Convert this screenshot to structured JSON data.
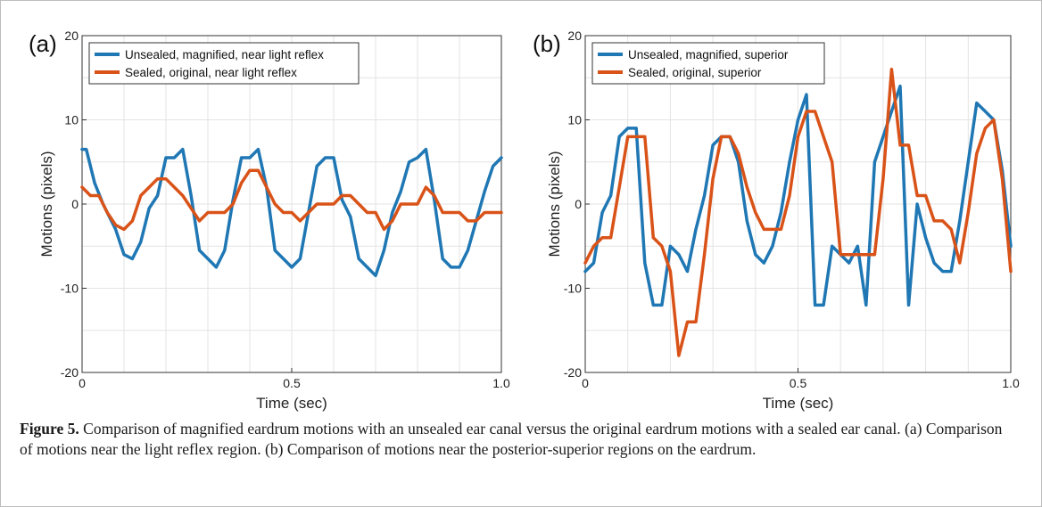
{
  "chart_data": [
    {
      "panel_label": "(a)",
      "type": "line",
      "xlabel": "Time (sec)",
      "ylabel": "Motions (pixels)",
      "xlim": [
        0,
        1.0
      ],
      "ylim": [
        -20,
        20
      ],
      "xticks": [
        0,
        0.5,
        1.0
      ],
      "xtick_labels": [
        "0",
        "0.5",
        "1.0"
      ],
      "yticks": [
        -20,
        -10,
        0,
        10,
        20
      ],
      "ytick_labels": [
        "-20",
        "-10",
        "0",
        "10",
        "20"
      ],
      "grid": true,
      "legend_position": "top-left",
      "series": [
        {
          "name": "Unsealed, magnified, near light reflex",
          "color": "#1f77b4",
          "x": [
            0.0,
            0.01,
            0.03,
            0.05,
            0.08,
            0.1,
            0.12,
            0.14,
            0.16,
            0.18,
            0.2,
            0.22,
            0.24,
            0.26,
            0.28,
            0.3,
            0.32,
            0.34,
            0.36,
            0.38,
            0.4,
            0.42,
            0.44,
            0.46,
            0.48,
            0.5,
            0.52,
            0.54,
            0.56,
            0.58,
            0.6,
            0.62,
            0.64,
            0.66,
            0.68,
            0.7,
            0.72,
            0.74,
            0.76,
            0.78,
            0.8,
            0.82,
            0.84,
            0.86,
            0.88,
            0.9,
            0.92,
            0.94,
            0.96,
            0.98,
            1.0
          ],
          "values": [
            6.5,
            6.5,
            2.5,
            0.0,
            -3.0,
            -6.0,
            -6.5,
            -4.5,
            -0.5,
            1.0,
            5.5,
            5.5,
            6.5,
            1.0,
            -5.5,
            -6.5,
            -7.5,
            -5.5,
            0.5,
            5.5,
            5.5,
            6.5,
            2.0,
            -5.5,
            -6.5,
            -7.5,
            -6.5,
            -1.0,
            4.5,
            5.5,
            5.5,
            0.5,
            -1.5,
            -6.5,
            -7.5,
            -8.5,
            -5.5,
            -1.0,
            1.5,
            5.0,
            5.5,
            6.5,
            0.5,
            -6.5,
            -7.5,
            -7.5,
            -5.5,
            -2.0,
            1.5,
            4.5,
            5.5
          ]
        },
        {
          "name": "Sealed, original, near light reflex",
          "color": "#d95319",
          "x": [
            0.0,
            0.02,
            0.04,
            0.06,
            0.08,
            0.1,
            0.12,
            0.14,
            0.16,
            0.18,
            0.2,
            0.22,
            0.24,
            0.26,
            0.28,
            0.3,
            0.32,
            0.34,
            0.36,
            0.38,
            0.4,
            0.42,
            0.44,
            0.46,
            0.48,
            0.5,
            0.52,
            0.54,
            0.56,
            0.58,
            0.6,
            0.62,
            0.64,
            0.66,
            0.68,
            0.7,
            0.72,
            0.74,
            0.76,
            0.78,
            0.8,
            0.82,
            0.84,
            0.86,
            0.88,
            0.9,
            0.92,
            0.94,
            0.96,
            0.98,
            1.0
          ],
          "values": [
            2.0,
            1.0,
            1.0,
            -1.0,
            -2.5,
            -3.0,
            -2.0,
            1.0,
            2.0,
            3.0,
            3.0,
            2.0,
            1.0,
            -0.5,
            -2.0,
            -1.0,
            -1.0,
            -1.0,
            0.0,
            2.5,
            4.0,
            4.0,
            2.0,
            0.0,
            -1.0,
            -1.0,
            -2.0,
            -1.0,
            0.0,
            0.0,
            0.0,
            1.0,
            1.0,
            0.0,
            -1.0,
            -1.0,
            -3.0,
            -2.0,
            0.0,
            0.0,
            0.0,
            2.0,
            1.0,
            -1.0,
            -1.0,
            -1.0,
            -2.0,
            -2.0,
            -1.0,
            -1.0,
            -1.0
          ]
        }
      ]
    },
    {
      "panel_label": "(b)",
      "type": "line",
      "xlabel": "Time (sec)",
      "ylabel": "Motions (pixels)",
      "xlim": [
        0,
        1.0
      ],
      "ylim": [
        -20,
        20
      ],
      "xticks": [
        0,
        0.5,
        1.0
      ],
      "xtick_labels": [
        "0",
        "0.5",
        "1.0"
      ],
      "yticks": [
        -20,
        -10,
        0,
        10,
        20
      ],
      "ytick_labels": [
        "-20",
        "-10",
        "0",
        "10",
        "20"
      ],
      "grid": true,
      "legend_position": "top-left",
      "series": [
        {
          "name": "Unsealed, magnified, superior",
          "color": "#1f77b4",
          "x": [
            0.0,
            0.02,
            0.04,
            0.06,
            0.08,
            0.1,
            0.12,
            0.14,
            0.16,
            0.18,
            0.2,
            0.22,
            0.24,
            0.26,
            0.28,
            0.3,
            0.32,
            0.34,
            0.36,
            0.38,
            0.4,
            0.42,
            0.44,
            0.46,
            0.48,
            0.5,
            0.52,
            0.54,
            0.56,
            0.58,
            0.6,
            0.62,
            0.64,
            0.66,
            0.68,
            0.7,
            0.72,
            0.74,
            0.76,
            0.78,
            0.8,
            0.82,
            0.84,
            0.86,
            0.88,
            0.9,
            0.92,
            0.94,
            0.96,
            0.98,
            1.0
          ],
          "values": [
            -8.0,
            -7.0,
            -1.0,
            1.0,
            8.0,
            9.0,
            9.0,
            -7.0,
            -12.0,
            -12.0,
            -5.0,
            -6.0,
            -8.0,
            -3.0,
            1.0,
            7.0,
            8.0,
            8.0,
            5.0,
            -2.0,
            -6.0,
            -7.0,
            -5.0,
            -1.0,
            5.0,
            10.0,
            13.0,
            -12.0,
            -12.0,
            -5.0,
            -6.0,
            -7.0,
            -5.0,
            -12.0,
            5.0,
            8.0,
            11.0,
            14.0,
            -12.0,
            0.0,
            -4.0,
            -7.0,
            -8.0,
            -8.0,
            -2.0,
            5.0,
            12.0,
            11.0,
            10.0,
            4.0,
            -5.0
          ]
        },
        {
          "name": "Sealed, original, superior",
          "color": "#d95319",
          "x": [
            0.0,
            0.02,
            0.04,
            0.06,
            0.08,
            0.1,
            0.12,
            0.14,
            0.16,
            0.18,
            0.2,
            0.22,
            0.24,
            0.26,
            0.28,
            0.3,
            0.32,
            0.34,
            0.36,
            0.38,
            0.4,
            0.42,
            0.44,
            0.46,
            0.48,
            0.5,
            0.52,
            0.54,
            0.56,
            0.58,
            0.6,
            0.62,
            0.64,
            0.66,
            0.68,
            0.7,
            0.72,
            0.74,
            0.76,
            0.78,
            0.8,
            0.82,
            0.84,
            0.86,
            0.88,
            0.9,
            0.92,
            0.94,
            0.96,
            0.98,
            1.0
          ],
          "values": [
            -7.0,
            -5.0,
            -4.0,
            -4.0,
            2.0,
            8.0,
            8.0,
            8.0,
            -4.0,
            -5.0,
            -8.0,
            -18.0,
            -14.0,
            -14.0,
            -6.0,
            3.0,
            8.0,
            8.0,
            6.0,
            2.0,
            -1.0,
            -3.0,
            -3.0,
            -3.0,
            1.0,
            8.0,
            11.0,
            11.0,
            8.0,
            5.0,
            -6.0,
            -6.0,
            -6.0,
            -6.0,
            -6.0,
            3.0,
            16.0,
            7.0,
            7.0,
            1.0,
            1.0,
            -2.0,
            -2.0,
            -3.0,
            -7.0,
            -1.0,
            6.0,
            9.0,
            10.0,
            3.0,
            -8.0
          ]
        }
      ]
    }
  ],
  "caption": {
    "label": "Figure 5.",
    "text": " Comparison of magnified eardrum motions with an unsealed ear canal versus the original eardrum motions with a sealed ear canal. (a) Comparison of motions near the light reflex region. (b) Comparison of motions near the posterior-superior regions on the eardrum."
  }
}
